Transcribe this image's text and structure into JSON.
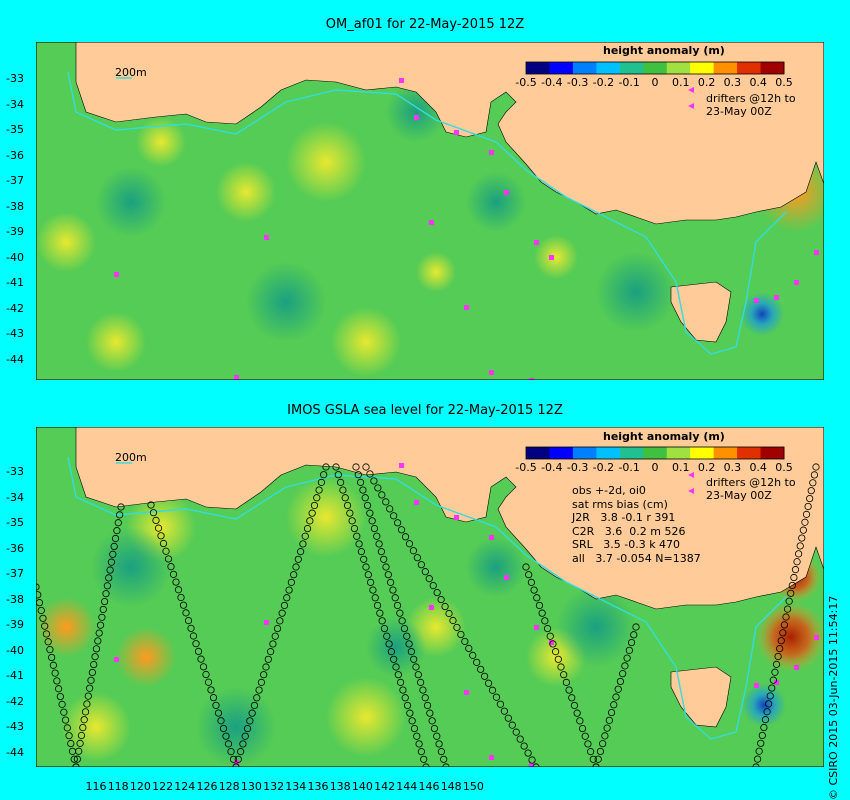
{
  "panels": [
    {
      "title": "OM_af01 for 22-May-2015 12Z",
      "colorbar_title": "height anomaly (m)",
      "colorbar_ticks": [
        "-0.5",
        "-0.4",
        "-0.3",
        "-0.2",
        "-0.1",
        "0",
        "0.1",
        "0.2",
        "0.3",
        "0.4",
        "0.5"
      ],
      "isobath_label": "200m",
      "drifters_label": "drifters @12h to",
      "drifters_time": "23-May 00Z",
      "stats_lines": []
    },
    {
      "title": "IMOS GSLA sea level  for 22-May-2015 12Z",
      "colorbar_title": "height anomaly (m)",
      "colorbar_ticks": [
        "-0.5",
        "-0.4",
        "-0.3",
        "-0.2",
        "-0.1",
        "0",
        "0.1",
        "0.2",
        "0.3",
        "0.4",
        "0.5"
      ],
      "isobath_label": "200m",
      "drifters_label": "drifters @12h to",
      "drifters_time": "23-May 00Z",
      "stats_lines": [
        "obs +-2d, oi0",
        "sat rms bias (cm)",
        "J2R   3.8 -0.1 r 391",
        "C2R   3.6  0.2 m 526",
        "SRL   3.5 -0.3 k 470",
        "all   3.7 -0.054 N=1387"
      ]
    }
  ],
  "y_ticks": [
    "-33",
    "-34",
    "-35",
    "-36",
    "-37",
    "-38",
    "-39",
    "-40",
    "-41",
    "-42",
    "-43",
    "-44"
  ],
  "x_ticks": [
    "116",
    "118",
    "120",
    "122",
    "124",
    "126",
    "128",
    "130",
    "132",
    "134",
    "136",
    "138",
    "140",
    "142",
    "144",
    "146",
    "148",
    "150"
  ],
  "credit": "© CSIRO 2015  03-Jun-2015 11:54:17",
  "colors": {
    "background": "#00ffff",
    "land": "#ffcc99",
    "isobath": "#33dddd",
    "drifter": "#ff33ff",
    "ocean_base": "#55cc55"
  },
  "colormap": [
    "#000080",
    "#0000ff",
    "#0080ff",
    "#00c0ff",
    "#20c090",
    "#40c040",
    "#a0e040",
    "#ffff00",
    "#ff9000",
    "#e03000",
    "#a00000"
  ]
}
